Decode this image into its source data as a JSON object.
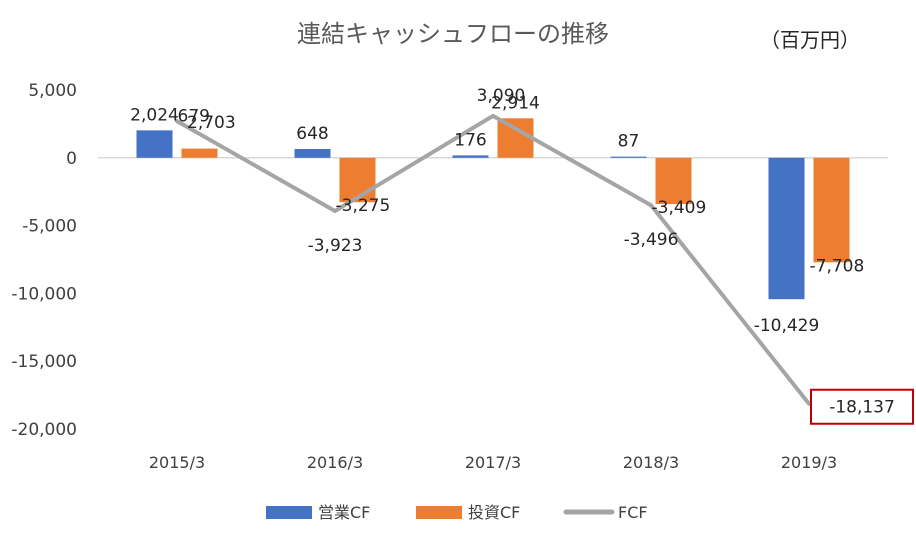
{
  "chart_data": {
    "type": "bar",
    "title": "連結キャッシュフローの推移",
    "unit_label": "（百万円）",
    "categories": [
      "2015/3",
      "2016/3",
      "2017/3",
      "2018/3",
      "2019/3"
    ],
    "series": [
      {
        "name": "営業CF",
        "kind": "bar",
        "color": "#4472C4",
        "values": [
          2024,
          648,
          176,
          87,
          -10429
        ]
      },
      {
        "name": "投資CF",
        "kind": "bar",
        "color": "#ED7D31",
        "values": [
          679,
          -3275,
          2914,
          -3409,
          -7708
        ]
      },
      {
        "name": "FCF",
        "kind": "line",
        "color": "#A5A5A5",
        "values": [
          2703,
          -3923,
          3090,
          -3496,
          -18137
        ]
      }
    ],
    "data_labels": {
      "営業CF": [
        "2,024",
        "648",
        "176",
        "87",
        "-10,429"
      ],
      "投資CF": [
        "679",
        "-3,275",
        "2,914",
        "-3,409",
        "-7,708"
      ],
      "FCF": [
        "2,703",
        "-3,923",
        "3,090",
        "-3,496",
        "-18,137"
      ]
    },
    "y_ticks": [
      5000,
      0,
      -5000,
      -10000,
      -15000,
      -20000
    ],
    "y_tick_labels": [
      "5,000",
      "0",
      "-5,000",
      "-10,000",
      "-15,000",
      "-20,000"
    ],
    "ylim": [
      -20000,
      5000
    ],
    "highlight": {
      "series": "FCF",
      "index": 4,
      "color": "#C00000"
    },
    "legend_position": "bottom"
  }
}
